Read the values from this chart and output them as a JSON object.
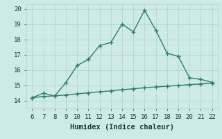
{
  "x": [
    6,
    7,
    8,
    9,
    10,
    11,
    12,
    13,
    14,
    15,
    16,
    17,
    18,
    19,
    20,
    21,
    22
  ],
  "y_main": [
    14.2,
    14.5,
    14.3,
    15.2,
    16.3,
    16.7,
    17.6,
    17.8,
    19.0,
    18.5,
    19.9,
    18.6,
    17.1,
    16.9,
    15.5,
    15.4,
    15.2
  ],
  "y_ref": [
    14.2,
    14.28,
    14.32,
    14.38,
    14.45,
    14.52,
    14.58,
    14.65,
    14.72,
    14.78,
    14.85,
    14.9,
    14.95,
    15.0,
    15.05,
    15.1,
    15.15
  ],
  "line_color": "#2d7b72",
  "bg_color": "#ceeae6",
  "grid_color_major": "#b8d8d4",
  "grid_color_minor": "#d4eceb",
  "xlabel": "Humidex (Indice chaleur)",
  "xlim": [
    5.5,
    22.5
  ],
  "ylim": [
    13.8,
    20.3
  ],
  "xticks": [
    6,
    7,
    8,
    9,
    10,
    11,
    12,
    13,
    14,
    15,
    16,
    17,
    18,
    19,
    20,
    21,
    22
  ],
  "yticks": [
    14,
    15,
    16,
    17,
    18,
    19,
    20
  ],
  "marker": "+",
  "marker_size": 4,
  "linewidth": 1.0,
  "xlabel_fontsize": 7.5,
  "tick_fontsize": 6.5
}
